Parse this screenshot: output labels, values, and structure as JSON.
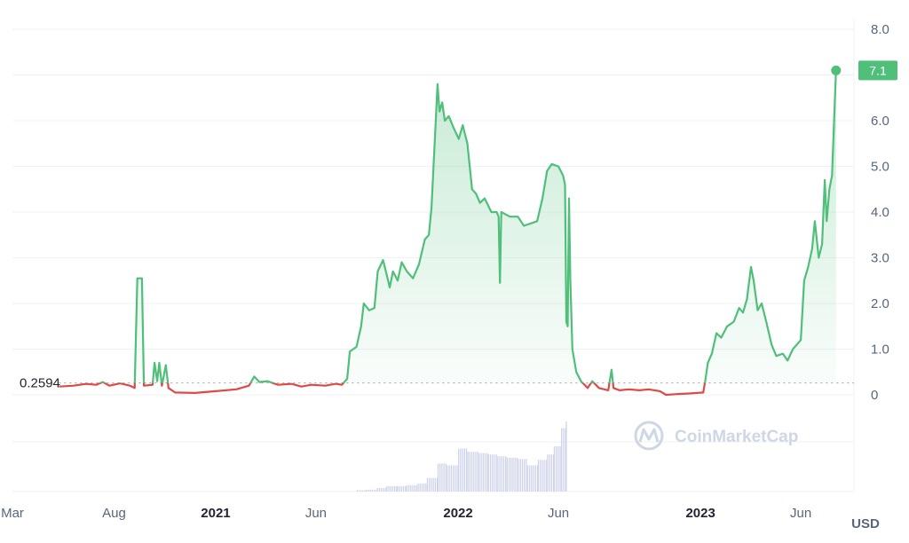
{
  "brand": {
    "watermark": "CoinMarketCap",
    "icon": "coinmarketcap-logo-icon"
  },
  "colors": {
    "up": "#4fbf7a",
    "down": "#dd4a46",
    "grid": "#eff2f5",
    "volume": "#cfd3ea",
    "text": "#58667e"
  },
  "chart_data": {
    "type": "area",
    "title": "",
    "xlabel": "",
    "ylabel": "",
    "currency_label": "USD",
    "baseline_value": 0.2594,
    "baseline_label": "0.2594",
    "current_value": 7.1,
    "current_label": "7.1",
    "ylim": [
      0,
      8
    ],
    "yticks": [
      "0",
      "1.0",
      "2.0",
      "3.0",
      "4.0",
      "5.0",
      "6.0",
      "7.0",
      "8.0"
    ],
    "xlim": [
      "2020-03-01",
      "2023-08-20"
    ],
    "xticks": [
      {
        "date": "2020-03-01",
        "label": "Mar",
        "bold": false
      },
      {
        "date": "2020-08-01",
        "label": "Aug",
        "bold": false
      },
      {
        "date": "2021-01-01",
        "label": "2021",
        "bold": true
      },
      {
        "date": "2021-06-01",
        "label": "Jun",
        "bold": false
      },
      {
        "date": "2022-01-01",
        "label": "2022",
        "bold": true
      },
      {
        "date": "2022-06-01",
        "label": "Jun",
        "bold": false
      },
      {
        "date": "2023-01-01",
        "label": "2023",
        "bold": true
      },
      {
        "date": "2023-06-01",
        "label": "Jun",
        "bold": false
      }
    ],
    "grid": true,
    "series": [
      {
        "points": [
          [
            "2020-05-10",
            0.18
          ],
          [
            "2020-06-01",
            0.2
          ],
          [
            "2020-06-20",
            0.24
          ],
          [
            "2020-07-05",
            0.22
          ],
          [
            "2020-07-15",
            0.28
          ],
          [
            "2020-07-25",
            0.2
          ],
          [
            "2020-08-10",
            0.25
          ],
          [
            "2020-08-25",
            0.2
          ],
          [
            "2020-09-01",
            0.15
          ],
          [
            "2020-09-05",
            2.55
          ],
          [
            "2020-09-12",
            2.55
          ],
          [
            "2020-09-15",
            0.2
          ],
          [
            "2020-09-28",
            0.22
          ],
          [
            "2020-10-01",
            0.7
          ],
          [
            "2020-10-05",
            0.3
          ],
          [
            "2020-10-08",
            0.7
          ],
          [
            "2020-10-12",
            0.2
          ],
          [
            "2020-10-18",
            0.65
          ],
          [
            "2020-10-22",
            0.15
          ],
          [
            "2020-11-01",
            0.05
          ],
          [
            "2020-12-01",
            0.04
          ],
          [
            "2021-01-01",
            0.08
          ],
          [
            "2021-02-01",
            0.12
          ],
          [
            "2021-02-20",
            0.2
          ],
          [
            "2021-02-28",
            0.4
          ],
          [
            "2021-03-08",
            0.28
          ],
          [
            "2021-03-20",
            0.3
          ],
          [
            "2021-04-05",
            0.22
          ],
          [
            "2021-04-25",
            0.24
          ],
          [
            "2021-05-10",
            0.18
          ],
          [
            "2021-05-25",
            0.22
          ],
          [
            "2021-06-15",
            0.2
          ],
          [
            "2021-07-01",
            0.24
          ],
          [
            "2021-07-10",
            0.22
          ],
          [
            "2021-07-18",
            0.35
          ],
          [
            "2021-07-22",
            0.95
          ],
          [
            "2021-08-01",
            1.05
          ],
          [
            "2021-08-08",
            1.5
          ],
          [
            "2021-08-12",
            2.0
          ],
          [
            "2021-08-20",
            1.85
          ],
          [
            "2021-08-28",
            1.9
          ],
          [
            "2021-09-02",
            2.7
          ],
          [
            "2021-09-10",
            2.95
          ],
          [
            "2021-09-16",
            2.6
          ],
          [
            "2021-09-20",
            2.35
          ],
          [
            "2021-09-25",
            2.7
          ],
          [
            "2021-10-02",
            2.5
          ],
          [
            "2021-10-08",
            2.9
          ],
          [
            "2021-10-16",
            2.7
          ],
          [
            "2021-10-25",
            2.55
          ],
          [
            "2021-11-03",
            2.85
          ],
          [
            "2021-11-12",
            3.4
          ],
          [
            "2021-11-18",
            3.5
          ],
          [
            "2021-11-22",
            4.1
          ],
          [
            "2021-11-27",
            5.6
          ],
          [
            "2021-12-01",
            6.8
          ],
          [
            "2021-12-04",
            6.2
          ],
          [
            "2021-12-08",
            6.4
          ],
          [
            "2021-12-12",
            6.0
          ],
          [
            "2021-12-18",
            6.1
          ],
          [
            "2021-12-25",
            5.85
          ],
          [
            "2022-01-02",
            5.6
          ],
          [
            "2022-01-08",
            5.9
          ],
          [
            "2022-01-15",
            5.5
          ],
          [
            "2022-01-22",
            4.5
          ],
          [
            "2022-01-28",
            4.4
          ],
          [
            "2022-02-03",
            4.2
          ],
          [
            "2022-02-10",
            4.3
          ],
          [
            "2022-02-20",
            4.0
          ],
          [
            "2022-02-28",
            4.0
          ],
          [
            "2022-03-03",
            3.9
          ],
          [
            "2022-03-05",
            2.45
          ],
          [
            "2022-03-07",
            4.0
          ],
          [
            "2022-03-20",
            3.9
          ],
          [
            "2022-04-01",
            3.9
          ],
          [
            "2022-04-10",
            3.7
          ],
          [
            "2022-04-20",
            3.75
          ],
          [
            "2022-04-30",
            3.8
          ],
          [
            "2022-05-08",
            4.3
          ],
          [
            "2022-05-15",
            4.9
          ],
          [
            "2022-05-22",
            5.05
          ],
          [
            "2022-06-01",
            5.0
          ],
          [
            "2022-06-08",
            4.8
          ],
          [
            "2022-06-11",
            4.6
          ],
          [
            "2022-06-13",
            1.6
          ],
          [
            "2022-06-15",
            1.5
          ],
          [
            "2022-06-17",
            4.3
          ],
          [
            "2022-06-19",
            2.5
          ],
          [
            "2022-06-22",
            1.0
          ],
          [
            "2022-06-28",
            0.5
          ],
          [
            "2022-07-05",
            0.3
          ],
          [
            "2022-07-15",
            0.15
          ],
          [
            "2022-07-22",
            0.3
          ],
          [
            "2022-08-01",
            0.15
          ],
          [
            "2022-08-15",
            0.1
          ],
          [
            "2022-08-20",
            0.55
          ],
          [
            "2022-08-23",
            0.15
          ],
          [
            "2022-09-01",
            0.1
          ],
          [
            "2022-09-15",
            0.12
          ],
          [
            "2022-10-01",
            0.1
          ],
          [
            "2022-10-15",
            0.12
          ],
          [
            "2022-11-01",
            0.08
          ],
          [
            "2022-11-10",
            0.0
          ],
          [
            "2022-12-01",
            0.02
          ],
          [
            "2022-12-15",
            0.03
          ],
          [
            "2023-01-05",
            0.05
          ],
          [
            "2023-01-08",
            0.3
          ],
          [
            "2023-01-12",
            0.7
          ],
          [
            "2023-01-18",
            0.9
          ],
          [
            "2023-01-25",
            1.35
          ],
          [
            "2023-02-01",
            1.25
          ],
          [
            "2023-02-10",
            1.5
          ],
          [
            "2023-02-20",
            1.6
          ],
          [
            "2023-02-28",
            1.9
          ],
          [
            "2023-03-06",
            1.8
          ],
          [
            "2023-03-12",
            2.1
          ],
          [
            "2023-03-18",
            2.8
          ],
          [
            "2023-03-22",
            2.5
          ],
          [
            "2023-03-28",
            1.85
          ],
          [
            "2023-04-03",
            2.0
          ],
          [
            "2023-04-10",
            1.6
          ],
          [
            "2023-04-18",
            1.1
          ],
          [
            "2023-04-25",
            0.85
          ],
          [
            "2023-05-05",
            0.9
          ],
          [
            "2023-05-12",
            0.75
          ],
          [
            "2023-05-20",
            1.0
          ],
          [
            "2023-06-01",
            1.2
          ],
          [
            "2023-06-06",
            2.5
          ],
          [
            "2023-06-12",
            2.8
          ],
          [
            "2023-06-18",
            3.2
          ],
          [
            "2023-06-22",
            3.8
          ],
          [
            "2023-06-28",
            3.0
          ],
          [
            "2023-07-03",
            3.3
          ],
          [
            "2023-07-07",
            4.7
          ],
          [
            "2023-07-10",
            3.8
          ],
          [
            "2023-07-14",
            4.5
          ],
          [
            "2023-07-18",
            4.8
          ],
          [
            "2023-07-21",
            6.0
          ],
          [
            "2023-07-24",
            7.1
          ]
        ]
      }
    ],
    "volume": {
      "values": [
        [
          "2021-08-01",
          0.03
        ],
        [
          "2021-08-15",
          0.04
        ],
        [
          "2021-09-01",
          0.08
        ],
        [
          "2021-09-15",
          0.12
        ],
        [
          "2021-10-01",
          0.12
        ],
        [
          "2021-10-15",
          0.14
        ],
        [
          "2021-11-01",
          0.18
        ],
        [
          "2021-11-15",
          0.3
        ],
        [
          "2021-12-01",
          0.62
        ],
        [
          "2021-12-15",
          0.58
        ],
        [
          "2022-01-01",
          0.95
        ],
        [
          "2022-01-15",
          0.88
        ],
        [
          "2022-02-01",
          0.85
        ],
        [
          "2022-02-15",
          0.82
        ],
        [
          "2022-03-01",
          0.78
        ],
        [
          "2022-03-15",
          0.75
        ],
        [
          "2022-04-01",
          0.72
        ],
        [
          "2022-04-15",
          0.58
        ],
        [
          "2022-05-01",
          0.7
        ],
        [
          "2022-05-15",
          0.82
        ],
        [
          "2022-05-25",
          1.0
        ],
        [
          "2022-06-05",
          1.4
        ],
        [
          "2022-06-12",
          1.55
        ]
      ]
    }
  }
}
